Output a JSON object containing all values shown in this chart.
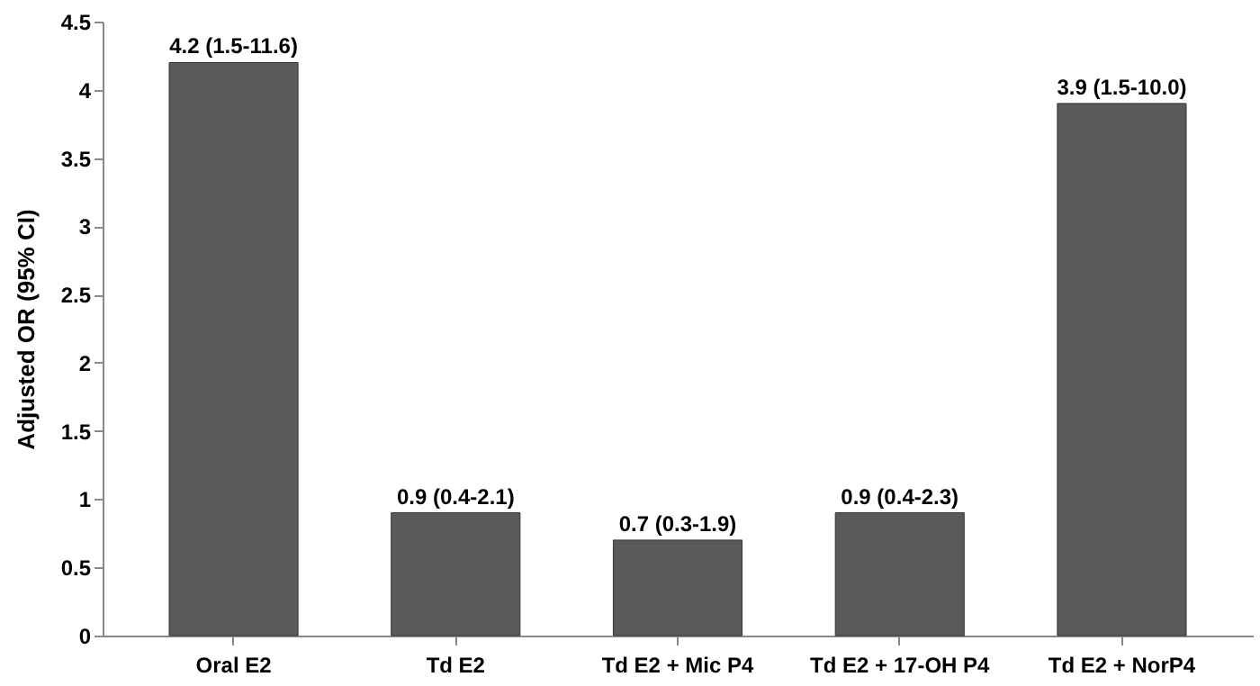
{
  "chart_data": {
    "type": "bar",
    "ylabel": "Adjusted OR (95% CI)",
    "categories": [
      "Oral E2",
      "Td E2",
      "Td E2 + Mic P4",
      "Td E2 + 17-OH P4",
      "Td E2 + NorP4"
    ],
    "values": [
      4.2,
      0.9,
      0.7,
      0.9,
      3.9
    ],
    "value_labels": [
      "4.2 (1.5-11.6)",
      "0.9 (0.4-2.1)",
      "0.7 (0.3-1.9)",
      "0.9 (0.4-2.3)",
      "3.9 (1.5-10.0)"
    ],
    "color": "#5a5a5a",
    "ylim": [
      0,
      4.5
    ],
    "yticks": [
      0,
      0.5,
      1,
      1.5,
      2,
      2.5,
      3,
      3.5,
      4,
      4.5
    ],
    "grid": false
  }
}
